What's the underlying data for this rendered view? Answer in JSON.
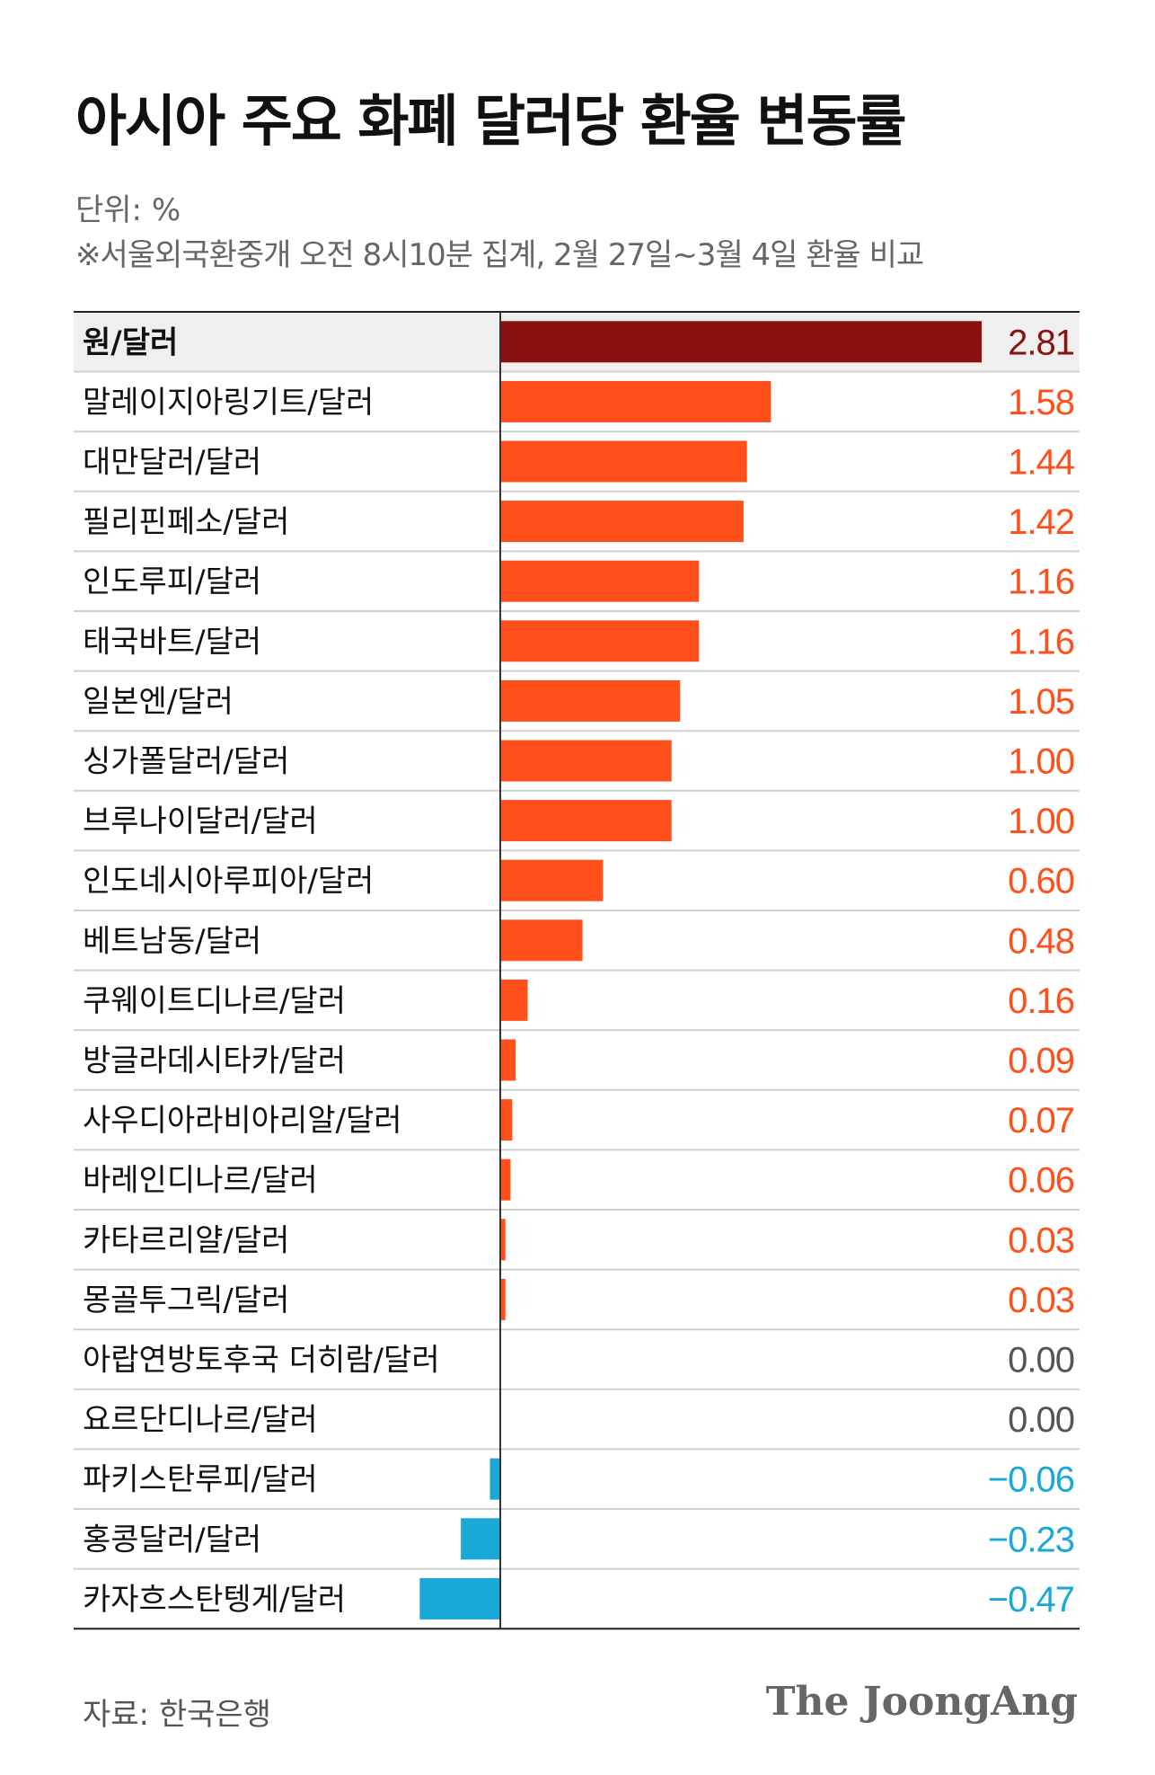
{
  "chart_data": {
    "type": "bar",
    "title": "아시아 주요 화폐 달러당 환율 변동률",
    "subtitle": "단위: %",
    "note": "※서울외국환중개 오전 8시10분 집계, 2월 27일~3월 4일 환율 비교",
    "source": "자료: 한국은행",
    "categories": [
      "원/달러",
      "말레이지아링기트/달러",
      "대만달러/달러",
      "필리핀페소/달러",
      "인도루피/달러",
      "태국바트/달러",
      "일본엔/달러",
      "싱가폴달러/달러",
      "브루나이달러/달러",
      "인도네시아루피아/달러",
      "베트남동/달러",
      "쿠웨이트디나르/달러",
      "방글라데시타카/달러",
      "사우디아라비아리알/달러",
      "바레인디나르/달러",
      "카타르리얄/달러",
      "몽골투그릭/달러",
      "아랍연방토후국 더히람/달러",
      "요르단디나르/달러",
      "파키스탄루피/달러",
      "홍콩달러/달러",
      "카자흐스탄텡게/달러"
    ],
    "values": [
      2.81,
      1.58,
      1.44,
      1.42,
      1.16,
      1.16,
      1.05,
      1.0,
      1.0,
      0.6,
      0.48,
      0.16,
      0.09,
      0.07,
      0.06,
      0.03,
      0.03,
      0.0,
      0.0,
      -0.06,
      -0.23,
      -0.47
    ],
    "value_labels": [
      "2.81",
      "1.58",
      "1.44",
      "1.42",
      "1.16",
      "1.16",
      "1.05",
      "1.00",
      "1.00",
      "0.60",
      "0.48",
      "0.16",
      "0.09",
      "0.07",
      "0.06",
      "0.03",
      "0.03",
      "0.00",
      "0.00",
      "−0.06",
      "−0.23",
      "−0.47"
    ],
    "highlight": "원/달러",
    "colors": {
      "highlight": "#8b1010",
      "positive": "#ff4f1a",
      "negative": "#1aa8d6",
      "zero": "#555555",
      "highlight_row_bg": "#efefef"
    }
  },
  "brand": "The JoongAng"
}
